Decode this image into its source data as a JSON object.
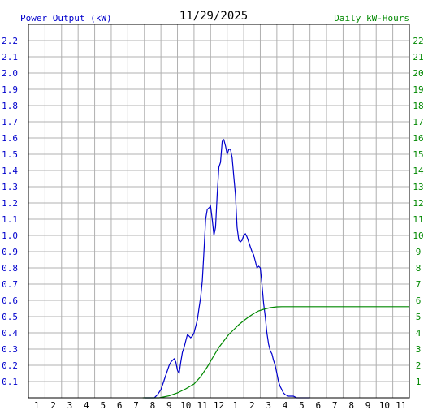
{
  "chart_data": {
    "type": "line",
    "title": "11/29/2025",
    "left_axis_label": "Power Output (kW)",
    "right_axis_label": "Daily kW-Hours",
    "colors": {
      "power": "#0000cc",
      "energy": "#008800",
      "grid": "#b0b0b0",
      "text": "#000000"
    },
    "x_range": [
      0,
      23
    ],
    "x_ticks": [
      "1",
      "2",
      "3",
      "4",
      "5",
      "6",
      "7",
      "8",
      "9",
      "10",
      "11",
      "12",
      "1",
      "2",
      "3",
      "4",
      "5",
      "6",
      "7",
      "8",
      "9",
      "10",
      "11"
    ],
    "y_left_range": [
      0,
      2.3
    ],
    "y_left_ticks": [
      "0.1",
      "0.2",
      "0.3",
      "0.4",
      "0.5",
      "0.6",
      "0.7",
      "0.8",
      "0.9",
      "1.0",
      "1.1",
      "1.2",
      "1.3",
      "1.4",
      "1.5",
      "1.6",
      "1.7",
      "1.8",
      "1.9",
      "2.0",
      "2.1",
      "2.2"
    ],
    "y_right_range": [
      0,
      23
    ],
    "y_right_ticks": [
      "1",
      "2",
      "3",
      "4",
      "5",
      "6",
      "7",
      "8",
      "9",
      "10",
      "11",
      "12",
      "13",
      "14",
      "15",
      "16",
      "17",
      "18",
      "19",
      "20",
      "21",
      "22"
    ],
    "grid": true,
    "series": [
      {
        "name": "Power Output (kW)",
        "axis": "left",
        "points": [
          [
            7.0,
            0
          ],
          [
            7.6,
            0.0
          ],
          [
            7.8,
            0.02
          ],
          [
            8.0,
            0.05
          ],
          [
            8.1,
            0.08
          ],
          [
            8.2,
            0.11
          ],
          [
            8.3,
            0.14
          ],
          [
            8.4,
            0.17
          ],
          [
            8.5,
            0.2
          ],
          [
            8.6,
            0.22
          ],
          [
            8.7,
            0.23
          ],
          [
            8.8,
            0.24
          ],
          [
            8.9,
            0.22
          ],
          [
            9.0,
            0.17
          ],
          [
            9.1,
            0.15
          ],
          [
            9.2,
            0.22
          ],
          [
            9.3,
            0.28
          ],
          [
            9.4,
            0.31
          ],
          [
            9.5,
            0.35
          ],
          [
            9.6,
            0.39
          ],
          [
            9.7,
            0.38
          ],
          [
            9.8,
            0.37
          ],
          [
            9.9,
            0.38
          ],
          [
            10.0,
            0.4
          ],
          [
            10.1,
            0.44
          ],
          [
            10.2,
            0.48
          ],
          [
            10.3,
            0.55
          ],
          [
            10.4,
            0.62
          ],
          [
            10.5,
            0.72
          ],
          [
            10.6,
            0.9
          ],
          [
            10.7,
            1.1
          ],
          [
            10.8,
            1.16
          ],
          [
            10.9,
            1.17
          ],
          [
            11.0,
            1.18
          ],
          [
            11.1,
            1.1
          ],
          [
            11.2,
            1.0
          ],
          [
            11.3,
            1.05
          ],
          [
            11.4,
            1.26
          ],
          [
            11.5,
            1.42
          ],
          [
            11.6,
            1.45
          ],
          [
            11.7,
            1.58
          ],
          [
            11.8,
            1.59
          ],
          [
            11.9,
            1.55
          ],
          [
            12.0,
            1.5
          ],
          [
            12.1,
            1.53
          ],
          [
            12.2,
            1.53
          ],
          [
            12.3,
            1.48
          ],
          [
            12.4,
            1.36
          ],
          [
            12.5,
            1.25
          ],
          [
            12.6,
            1.05
          ],
          [
            12.7,
            0.97
          ],
          [
            12.8,
            0.96
          ],
          [
            12.9,
            0.97
          ],
          [
            13.0,
            1.0
          ],
          [
            13.1,
            1.01
          ],
          [
            13.2,
            0.99
          ],
          [
            13.3,
            0.96
          ],
          [
            13.4,
            0.93
          ],
          [
            13.5,
            0.9
          ],
          [
            13.6,
            0.88
          ],
          [
            13.7,
            0.84
          ],
          [
            13.8,
            0.8
          ],
          [
            13.9,
            0.81
          ],
          [
            14.0,
            0.8
          ],
          [
            14.1,
            0.7
          ],
          [
            14.2,
            0.58
          ],
          [
            14.3,
            0.5
          ],
          [
            14.4,
            0.4
          ],
          [
            14.5,
            0.33
          ],
          [
            14.6,
            0.29
          ],
          [
            14.7,
            0.27
          ],
          [
            14.8,
            0.23
          ],
          [
            14.9,
            0.2
          ],
          [
            15.0,
            0.15
          ],
          [
            15.1,
            0.1
          ],
          [
            15.2,
            0.07
          ],
          [
            15.3,
            0.05
          ],
          [
            15.4,
            0.03
          ],
          [
            15.5,
            0.02
          ],
          [
            15.7,
            0.01
          ],
          [
            16.0,
            0.01
          ],
          [
            16.2,
            0.0
          ],
          [
            17.0,
            0.0
          ]
        ]
      },
      {
        "name": "Daily kW-Hours",
        "axis": "right",
        "points": [
          [
            6.9,
            0
          ],
          [
            7.9,
            0.0
          ],
          [
            8.5,
            0.12
          ],
          [
            9.0,
            0.3
          ],
          [
            9.5,
            0.55
          ],
          [
            10.0,
            0.85
          ],
          [
            10.4,
            1.3
          ],
          [
            10.8,
            1.9
          ],
          [
            11.2,
            2.6
          ],
          [
            11.5,
            3.1
          ],
          [
            11.8,
            3.5
          ],
          [
            12.1,
            3.9
          ],
          [
            12.4,
            4.2
          ],
          [
            12.7,
            4.5
          ],
          [
            13.0,
            4.75
          ],
          [
            13.3,
            4.98
          ],
          [
            13.6,
            5.18
          ],
          [
            13.9,
            5.35
          ],
          [
            14.2,
            5.45
          ],
          [
            14.6,
            5.55
          ],
          [
            15.0,
            5.6
          ],
          [
            15.3,
            5.61
          ],
          [
            16.0,
            5.61
          ],
          [
            23.0,
            5.61
          ]
        ]
      }
    ]
  }
}
